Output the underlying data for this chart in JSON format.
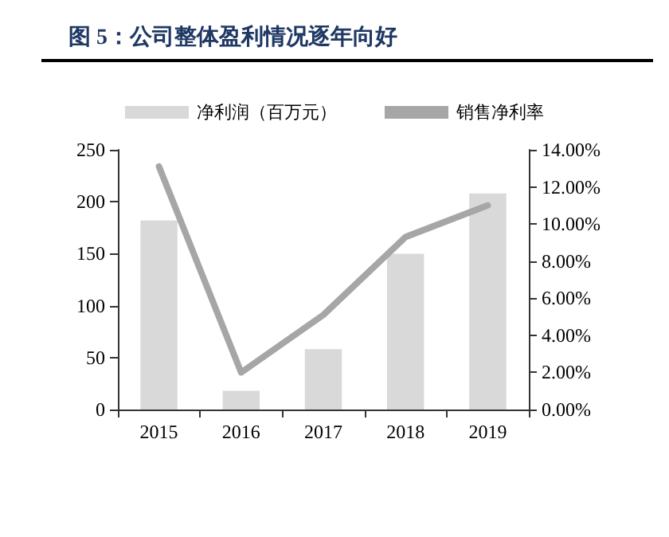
{
  "chart_data": {
    "type": "bar",
    "title": "图 5：公司整体盈利情况逐年向好",
    "categories": [
      "2015",
      "2016",
      "2017",
      "2018",
      "2019"
    ],
    "series": [
      {
        "name": "净利润（百万元）",
        "color": "#d9d9d9",
        "values": [
          182,
          18,
          58,
          150,
          208
        ]
      },
      {
        "name": "销售净利率",
        "type": "line",
        "axis": "y2",
        "color": "#a6a6a6",
        "values": [
          13.1,
          2.0,
          5.1,
          9.3,
          11.0
        ]
      }
    ],
    "ylim": [
      0,
      250
    ],
    "yticks": [
      0,
      50,
      100,
      150,
      200,
      250
    ],
    "y2lim": [
      0,
      14
    ],
    "y2ticks": [
      {
        "value": 0,
        "label": "0.00%"
      },
      {
        "value": 2,
        "label": "2.00%"
      },
      {
        "value": 4,
        "label": "4.00%"
      },
      {
        "value": 6,
        "label": "6.00%"
      },
      {
        "value": 8,
        "label": "8.00%"
      },
      {
        "value": 10,
        "label": "10.00%"
      },
      {
        "value": 12,
        "label": "12.00%"
      },
      {
        "value": 14,
        "label": "14.00%"
      }
    ],
    "legend": "top",
    "grid": false,
    "marker": "none",
    "line_style": "solid"
  }
}
